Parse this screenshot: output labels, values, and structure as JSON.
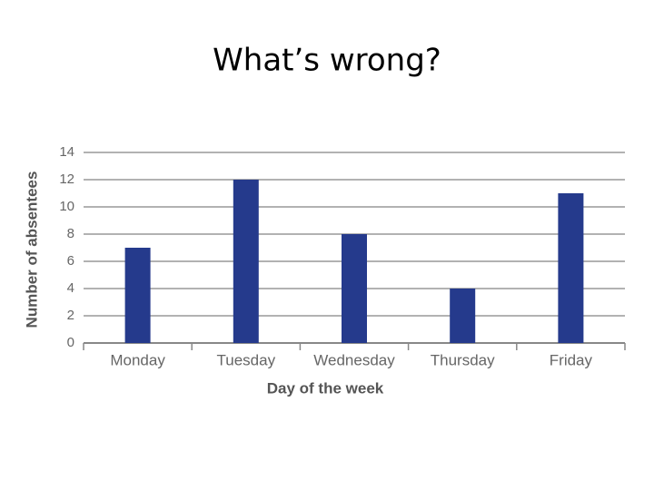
{
  "chart_data": {
    "type": "bar",
    "title": "What’s wrong?",
    "categories": [
      "Monday",
      "Tuesday",
      "Wednesday",
      "Thursday",
      "Friday"
    ],
    "values": [
      7,
      12,
      8,
      4,
      11
    ],
    "color": "#253a8c",
    "x_label": "Day of the week",
    "y_label": "Number of absentees",
    "ylim": [
      0,
      14
    ],
    "yticks": [
      0,
      2,
      4,
      6,
      8,
      10,
      12,
      14
    ],
    "grid": true
  }
}
